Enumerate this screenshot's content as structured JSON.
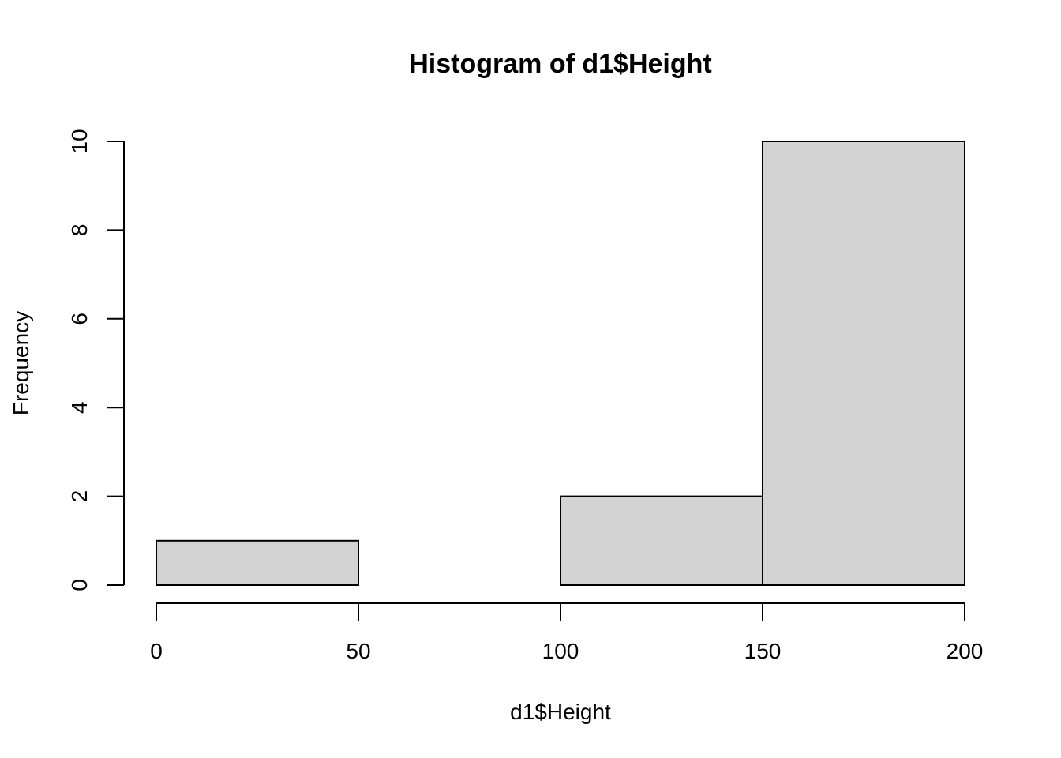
{
  "chart_data": {
    "type": "bar",
    "title": "Histogram of d1$Height",
    "xlabel": "d1$Height",
    "ylabel": "Frequency",
    "bins": [
      {
        "start": 0,
        "end": 50,
        "count": 1
      },
      {
        "start": 50,
        "end": 100,
        "count": 0
      },
      {
        "start": 100,
        "end": 150,
        "count": 2
      },
      {
        "start": 150,
        "end": 200,
        "count": 10
      }
    ],
    "xlim": [
      0,
      200
    ],
    "ylim": [
      0,
      10
    ],
    "x_ticks": [
      0,
      50,
      100,
      150,
      200
    ],
    "y_ticks": [
      0,
      2,
      4,
      6,
      8,
      10
    ],
    "bar_fill": "#d3d3d3",
    "bar_stroke": "#000000",
    "grid": false,
    "legend": "none"
  }
}
